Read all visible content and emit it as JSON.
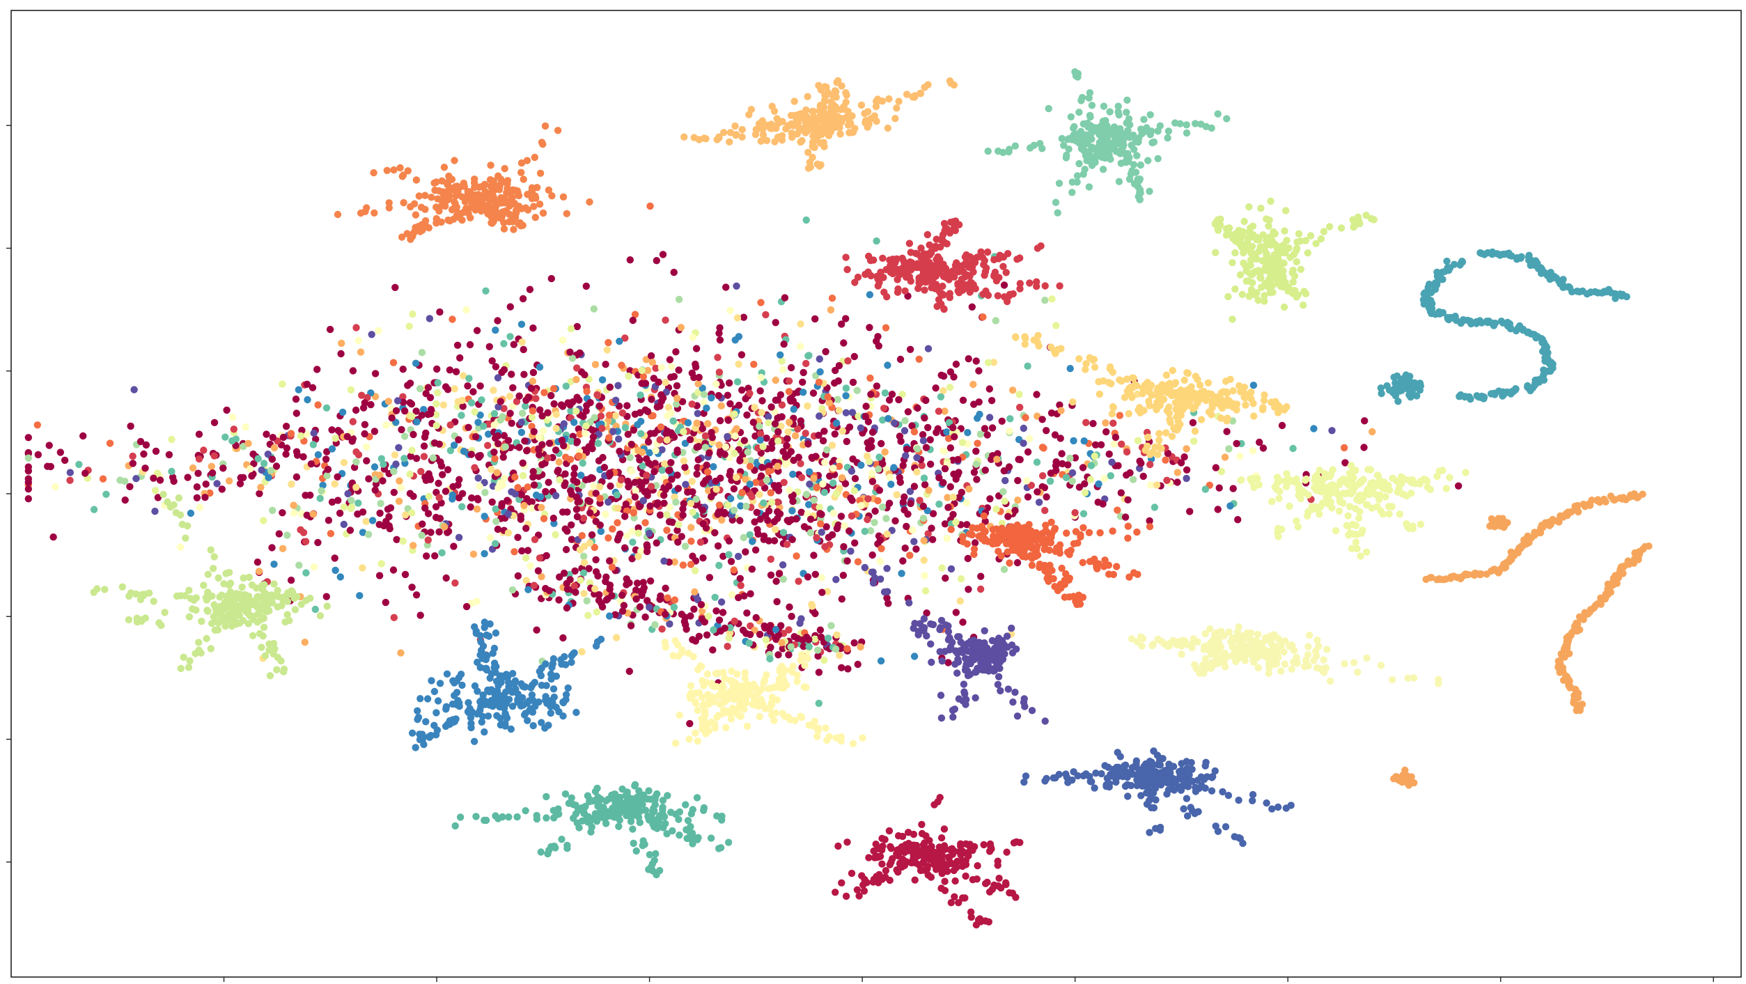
{
  "chart_data": {
    "type": "scatter",
    "title": "",
    "xlabel": "",
    "ylabel": "",
    "xlim": [
      0,
      100
    ],
    "ylim": [
      0,
      100
    ],
    "grid": false,
    "legend": "none",
    "tick_labels_visible": false,
    "x_ticks": [
      12.3,
      24.6,
      36.9,
      49.2,
      61.5,
      73.8,
      86.1,
      98.4
    ],
    "y_ticks": [
      11.9,
      24.6,
      37.3,
      50.0,
      62.7,
      75.4,
      88.1
    ],
    "seed": 7,
    "mixed_core": {
      "description_colors": [
        "#9e0142",
        "#d53e4f",
        "#f46d43",
        "#fdae61",
        "#fee08b",
        "#ffffbf",
        "#e6f598",
        "#abdda4",
        "#66c2a5",
        "#3288bd",
        "#5e4fa2"
      ],
      "center": [
        38,
        53
      ],
      "spread": [
        14,
        9
      ],
      "count": 2600
    },
    "series": [
      {
        "color": "#f4844c",
        "center": [
          27.5,
          80.5
        ],
        "spread": [
          3.2,
          2.2
        ],
        "count": 260,
        "arms": [
          [
            -9,
            -1.5
          ],
          [
            -6,
            3
          ],
          [
            -5,
            -4
          ],
          [
            4,
            8
          ],
          [
            2,
            -3
          ]
        ]
      },
      {
        "color": "#fdbe6f",
        "center": [
          46.5,
          88.5
        ],
        "spread": [
          3.0,
          1.6
        ],
        "count": 240,
        "arms": [
          [
            -8,
            -2
          ],
          [
            8,
            4
          ],
          [
            1,
            4
          ],
          [
            0,
            -5
          ]
        ]
      },
      {
        "color": "#7fcdaa",
        "center": [
          63.5,
          86.5
        ],
        "spread": [
          2.5,
          2.6
        ],
        "count": 240,
        "arms": [
          [
            7,
            2.5
          ],
          [
            -7,
            -1
          ],
          [
            -2,
            7
          ],
          [
            -3,
            -7
          ],
          [
            2,
            -6
          ]
        ]
      },
      {
        "color": "#d6ee8c",
        "center": [
          72.5,
          74.5
        ],
        "spread": [
          1.6,
          4.0
        ],
        "count": 230,
        "arms": [
          [
            6,
            4
          ],
          [
            -3,
            4
          ],
          [
            2,
            -5
          ]
        ]
      },
      {
        "color": "#d63d4c",
        "center": [
          53.0,
          73.0
        ],
        "spread": [
          3.0,
          2.0
        ],
        "count": 260,
        "arms": [
          [
            8,
            -1.5
          ],
          [
            7,
            2.5
          ],
          [
            1.5,
            6
          ],
          [
            1,
            -4
          ],
          [
            5,
            -3
          ]
        ]
      },
      {
        "color": "#fed67a",
        "center": [
          68.0,
          60.0
        ],
        "spread": [
          3.5,
          1.8
        ],
        "count": 240,
        "arms": [
          [
            -10,
            6.5
          ],
          [
            6,
            -1
          ],
          [
            -6,
            2.5
          ],
          [
            -2,
            -6
          ]
        ]
      },
      {
        "color": "#4aa3b2",
        "center": [
          80.5,
          61.0
        ],
        "spread": [
          0.9,
          0.9
        ],
        "count": 70,
        "arms": []
      },
      {
        "color": "#eef7a2",
        "center": [
          77.0,
          50.5
        ],
        "spread": [
          3.5,
          1.6
        ],
        "count": 230,
        "arms": [
          [
            -7,
            0.8
          ],
          [
            7,
            1.7
          ],
          [
            1,
            -7
          ],
          [
            4,
            -4
          ],
          [
            -4,
            -5
          ]
        ]
      },
      {
        "color": "#f1653f",
        "center": [
          58.0,
          45.5
        ],
        "spread": [
          2.3,
          1.4
        ],
        "count": 240,
        "arms": [
          [
            10,
            0.6
          ],
          [
            7,
            -4
          ],
          [
            4,
            -7
          ],
          [
            3,
            -5
          ]
        ]
      },
      {
        "color": "#f7f7b2",
        "center": [
          71.5,
          34.0
        ],
        "spread": [
          3.0,
          1.7
        ],
        "count": 230,
        "arms": [
          [
            -7,
            1
          ],
          [
            12,
            -4
          ],
          [
            5,
            -3
          ],
          [
            -3,
            -2.5
          ]
        ]
      },
      {
        "color": "#f6a65c",
        "center": [
          86.0,
          47.0
        ],
        "spread": [
          0.4,
          0.4
        ],
        "count": 40,
        "arms": []
      },
      {
        "color": "#f7a45c",
        "center": [
          80.5,
          20.5
        ],
        "spread": [
          0.6,
          0.6
        ],
        "count": 30,
        "arms": []
      },
      {
        "color": "#cae88f",
        "center": [
          13.5,
          38.5
        ],
        "spread": [
          2.8,
          1.8
        ],
        "count": 240,
        "arms": [
          [
            -8.5,
            1.5
          ],
          [
            -5,
            12
          ],
          [
            -7,
            -2
          ],
          [
            -4,
            -7
          ],
          [
            2,
            -7
          ]
        ]
      },
      {
        "color": "#3a84bd",
        "center": [
          28.0,
          28.5
        ],
        "spread": [
          3.5,
          2.5
        ],
        "count": 240,
        "arms": [
          [
            -5,
            -4.5
          ],
          [
            6,
            6.5
          ],
          [
            -1,
            8
          ]
        ]
      },
      {
        "color": "#fff6ab",
        "center": [
          42.0,
          29.0
        ],
        "spread": [
          2.7,
          2.2
        ],
        "count": 230,
        "arms": [
          [
            -4,
            6
          ],
          [
            7,
            -5
          ],
          [
            4,
            4
          ],
          [
            -3,
            -5
          ]
        ]
      },
      {
        "color": "#5e4ea1",
        "center": [
          56.0,
          33.5
        ],
        "spread": [
          1.7,
          1.7
        ],
        "count": 200,
        "arms": [
          [
            -7,
            9
          ],
          [
            -4,
            3
          ],
          [
            3,
            -7
          ],
          [
            -2,
            -7
          ]
        ]
      },
      {
        "color": "#4965ab",
        "center": [
          66.0,
          21.0
        ],
        "spread": [
          2.6,
          1.7
        ],
        "count": 240,
        "arms": [
          [
            -7.5,
            -0.5
          ],
          [
            8,
            -3.5
          ],
          [
            5,
            -7
          ],
          [
            0,
            -6
          ]
        ]
      },
      {
        "color": "#5db9a2",
        "center": [
          35.5,
          17.5
        ],
        "spread": [
          3.0,
          1.6
        ],
        "count": 230,
        "arms": [
          [
            -10,
            -1.5
          ],
          [
            7,
            -1
          ],
          [
            -5,
            -5
          ],
          [
            2,
            -7
          ],
          [
            5,
            -4
          ]
        ]
      },
      {
        "color": "#b71745",
        "center": [
          52.5,
          12.5
        ],
        "spread": [
          3.0,
          1.6
        ],
        "count": 230,
        "arms": [
          [
            6,
            1.5
          ],
          [
            -4,
            -4
          ],
          [
            1,
            6
          ],
          [
            4,
            -8
          ],
          [
            6,
            -4
          ]
        ]
      }
    ],
    "curves": [
      {
        "color": "#4aa3b2",
        "points": [
          [
            84.0,
            74.0
          ],
          [
            83.0,
            73.5
          ],
          [
            82.0,
            71.0
          ],
          [
            82.0,
            69.0
          ],
          [
            83.5,
            68.0
          ],
          [
            86.5,
            67.5
          ],
          [
            88.5,
            66.0
          ],
          [
            89.0,
            63.0
          ],
          [
            88.0,
            61.0
          ],
          [
            85.0,
            60.0
          ],
          [
            83.5,
            60.0
          ]
        ],
        "width": 1.1
      },
      {
        "color": "#4aa3b2",
        "points": [
          [
            85.0,
            75.0
          ],
          [
            87.5,
            74.5
          ],
          [
            89.0,
            72.5
          ],
          [
            90.5,
            71.0
          ],
          [
            93.5,
            70.5
          ]
        ],
        "width": 1.1
      },
      {
        "color": "#f6a65c",
        "points": [
          [
            82.0,
            41.0
          ],
          [
            86.0,
            42.0
          ],
          [
            88.0,
            46.0
          ],
          [
            91.0,
            49.0
          ],
          [
            94.5,
            50.0
          ]
        ],
        "width": 1.0
      },
      {
        "color": "#f6a65c",
        "points": [
          [
            94.5,
            44.5
          ],
          [
            93.0,
            42.0
          ],
          [
            92.0,
            39.0
          ],
          [
            91.0,
            37.5
          ],
          [
            90.0,
            35.0
          ],
          [
            89.5,
            32.0
          ],
          [
            90.5,
            29.0
          ],
          [
            90.5,
            27.5
          ]
        ],
        "width": 1.1
      }
    ]
  }
}
